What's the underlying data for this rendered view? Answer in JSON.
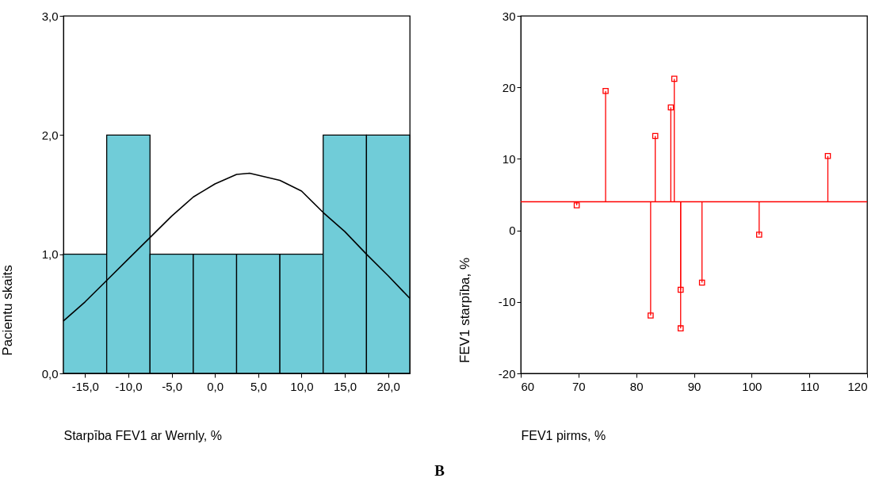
{
  "chart_data": [
    {
      "type": "histogram",
      "xlabel": "Starpība FEV1 ar Wernly, %",
      "ylabel": "Pacientu skaits",
      "bins": [
        -17.5,
        -12.5,
        -7.5,
        -2.5,
        2.5,
        7.5,
        12.5,
        17.5,
        22.5
      ],
      "values": [
        1,
        2,
        1,
        1,
        1,
        1,
        2,
        2
      ],
      "color": "#70ccd8",
      "series": [
        {
          "type": "line",
          "color": "#000000",
          "x": [
            -17.5,
            -15,
            -12.5,
            -10,
            -7.5,
            -5,
            -2.5,
            0,
            2.5,
            4,
            7.5,
            10,
            12.5,
            15,
            17.5,
            20,
            22.5
          ],
          "values": [
            0.44,
            0.6,
            0.78,
            0.96,
            1.14,
            1.32,
            1.48,
            1.59,
            1.67,
            1.68,
            1.62,
            1.53,
            1.35,
            1.19,
            1.0,
            0.82,
            0.63
          ]
        }
      ],
      "xlim": [
        -17.5,
        22.5
      ],
      "xticks": [
        {
          "value": -15,
          "label": "-15,0"
        },
        {
          "value": -10,
          "label": "-10,0"
        },
        {
          "value": -5,
          "label": "-5,0"
        },
        {
          "value": 0,
          "label": "0,0"
        },
        {
          "value": 5,
          "label": "5,0"
        },
        {
          "value": 10,
          "label": "10,0"
        },
        {
          "value": 15,
          "label": "15,0"
        },
        {
          "value": 20,
          "label": "20,0"
        }
      ],
      "ylim": [
        0,
        3
      ],
      "yticks": [
        {
          "value": 0,
          "label": "0,0"
        },
        {
          "value": 1,
          "label": "1,0"
        },
        {
          "value": 2,
          "label": "2,0"
        },
        {
          "value": 3,
          "label": "3,0"
        }
      ],
      "annotations": [
        "B"
      ]
    },
    {
      "type": "lollipop",
      "xlabel": "FEV1 pirms, %",
      "ylabel": "FEV1 starpība, %",
      "marker": "square",
      "series": [
        {
          "color": "#ff0000",
          "x": [
            69.7,
            74.7,
            82.5,
            83.3,
            86.0,
            86.6,
            87.7,
            87.7,
            91.4,
            101.3,
            113.2
          ],
          "values": [
            3.5,
            19.5,
            -11.9,
            13.2,
            17.2,
            21.2,
            -8.3,
            -13.7,
            -7.3,
            -0.6,
            10.4
          ]
        }
      ],
      "ref_lines": [
        {
          "axis": "y",
          "value": 4.0,
          "color": "#ff0000"
        }
      ],
      "xlim": [
        60,
        120
      ],
      "xticks": [
        60,
        70,
        80,
        90,
        100,
        110,
        120
      ],
      "ylim": [
        -20,
        30
      ],
      "yticks": [
        -20,
        -10,
        0,
        10,
        20,
        30
      ]
    }
  ]
}
